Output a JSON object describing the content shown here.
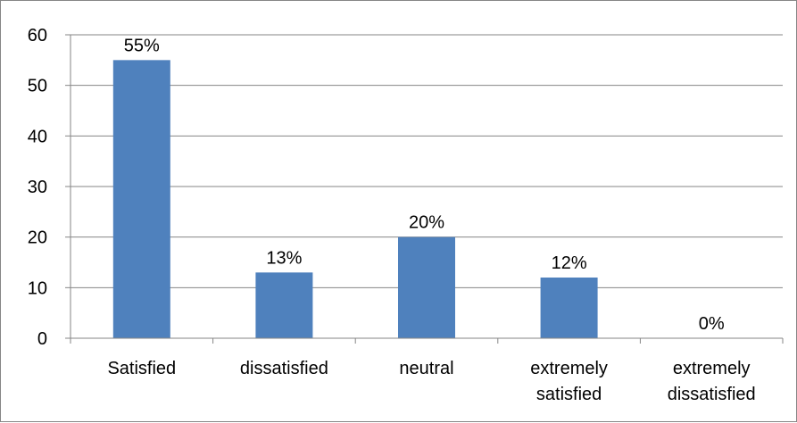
{
  "chart_data": {
    "type": "bar",
    "categories": [
      [
        "Satisfied"
      ],
      [
        "dissatisfied"
      ],
      [
        "neutral"
      ],
      [
        "extremely",
        "satisfied"
      ],
      [
        "extremely",
        "dissatisfied"
      ]
    ],
    "values": [
      55,
      13,
      20,
      12,
      0
    ],
    "data_labels": [
      "55%",
      "13%",
      "20%",
      "12%",
      "0%"
    ],
    "ylim": [
      0,
      60
    ],
    "yticks": [
      0,
      10,
      20,
      30,
      40,
      50,
      60
    ],
    "grid": true,
    "legend": "none",
    "title": "",
    "xlabel": "",
    "ylabel": "",
    "colors": {
      "bar": "#4f81bd",
      "grid": "#868686",
      "axis": "#868686"
    }
  }
}
